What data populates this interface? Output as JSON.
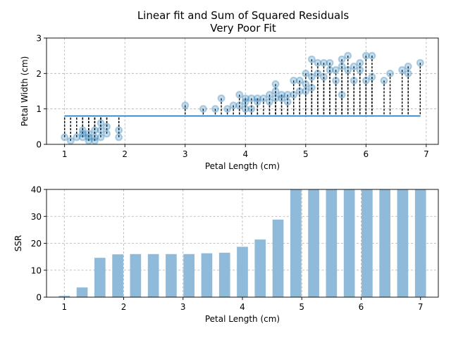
{
  "chart_data": [
    {
      "type": "scatter",
      "title": "Linear fit and Sum of Squared Residuals",
      "subtitle": "Very Poor Fit",
      "xlabel": "Petal Length (cm)",
      "ylabel": "Petal Width (cm)",
      "xlim": [
        0.7,
        7.2
      ],
      "ylim": [
        0,
        3
      ],
      "xticks": [
        "1",
        "2",
        "3",
        "4",
        "5",
        "6",
        "7"
      ],
      "yticks": [
        "0",
        "1",
        "2",
        "3"
      ],
      "grid": true,
      "fit_line": {
        "x": [
          1.0,
          6.9
        ],
        "y": [
          0.8,
          0.8
        ],
        "color": "#1f77b4"
      },
      "point_color": "#1f77b4",
      "residual_color": "#000000",
      "points": [
        [
          1.0,
          0.2
        ],
        [
          1.1,
          0.1
        ],
        [
          1.2,
          0.2
        ],
        [
          1.3,
          0.2
        ],
        [
          1.3,
          0.3
        ],
        [
          1.3,
          0.4
        ],
        [
          1.4,
          0.1
        ],
        [
          1.4,
          0.2
        ],
        [
          1.4,
          0.3
        ],
        [
          1.5,
          0.1
        ],
        [
          1.5,
          0.2
        ],
        [
          1.5,
          0.4
        ],
        [
          1.6,
          0.2
        ],
        [
          1.6,
          0.4
        ],
        [
          1.6,
          0.6
        ],
        [
          1.7,
          0.3
        ],
        [
          1.7,
          0.5
        ],
        [
          1.9,
          0.2
        ],
        [
          1.9,
          0.4
        ],
        [
          3.0,
          1.1
        ],
        [
          3.3,
          1.0
        ],
        [
          3.5,
          1.0
        ],
        [
          3.6,
          1.3
        ],
        [
          3.7,
          1.0
        ],
        [
          3.8,
          1.1
        ],
        [
          3.9,
          1.1
        ],
        [
          3.9,
          1.4
        ],
        [
          4.0,
          1.0
        ],
        [
          4.0,
          1.2
        ],
        [
          4.0,
          1.3
        ],
        [
          4.1,
          1.0
        ],
        [
          4.1,
          1.3
        ],
        [
          4.2,
          1.2
        ],
        [
          4.2,
          1.3
        ],
        [
          4.3,
          1.3
        ],
        [
          4.4,
          1.2
        ],
        [
          4.4,
          1.4
        ],
        [
          4.5,
          1.3
        ],
        [
          4.5,
          1.5
        ],
        [
          4.5,
          1.7
        ],
        [
          4.6,
          1.3
        ],
        [
          4.6,
          1.4
        ],
        [
          4.7,
          1.2
        ],
        [
          4.7,
          1.4
        ],
        [
          4.8,
          1.4
        ],
        [
          4.8,
          1.8
        ],
        [
          4.9,
          1.5
        ],
        [
          4.9,
          1.8
        ],
        [
          5.0,
          1.5
        ],
        [
          5.0,
          1.7
        ],
        [
          5.0,
          2.0
        ],
        [
          5.1,
          1.6
        ],
        [
          5.1,
          1.9
        ],
        [
          5.1,
          2.4
        ],
        [
          5.2,
          2.0
        ],
        [
          5.2,
          2.3
        ],
        [
          5.3,
          1.9
        ],
        [
          5.3,
          2.3
        ],
        [
          5.4,
          2.1
        ],
        [
          5.4,
          2.3
        ],
        [
          5.5,
          1.8
        ],
        [
          5.5,
          2.1
        ],
        [
          5.6,
          1.4
        ],
        [
          5.6,
          2.2
        ],
        [
          5.6,
          2.4
        ],
        [
          5.7,
          2.1
        ],
        [
          5.7,
          2.5
        ],
        [
          5.8,
          1.8
        ],
        [
          5.8,
          2.2
        ],
        [
          5.9,
          2.1
        ],
        [
          5.9,
          2.3
        ],
        [
          6.0,
          1.8
        ],
        [
          6.0,
          2.5
        ],
        [
          6.1,
          1.9
        ],
        [
          6.1,
          2.5
        ],
        [
          6.3,
          1.8
        ],
        [
          6.4,
          2.0
        ],
        [
          6.6,
          2.1
        ],
        [
          6.7,
          2.0
        ],
        [
          6.7,
          2.2
        ],
        [
          6.9,
          2.3
        ]
      ]
    },
    {
      "type": "bar",
      "title": "",
      "xlabel": "Petal Length (cm)",
      "ylabel": "SSR",
      "xlim": [
        0.7,
        7.3
      ],
      "ylim": [
        0,
        40
      ],
      "xticks": [
        "1",
        "2",
        "3",
        "4",
        "5",
        "6",
        "7"
      ],
      "yticks": [
        "0",
        "10",
        "20",
        "30",
        "40"
      ],
      "grid": true,
      "bar_color": "#8fbad9",
      "x": [
        1.0,
        1.3,
        1.6,
        1.9,
        2.2,
        2.5,
        2.8,
        3.1,
        3.4,
        3.7,
        4.0,
        4.3,
        4.6,
        4.9,
        5.2,
        5.5,
        5.8,
        6.1,
        6.4,
        6.7,
        7.0
      ],
      "values": [
        0.5,
        3.6,
        14.6,
        15.9,
        16.0,
        16.0,
        16.0,
        16.0,
        16.3,
        16.5,
        18.7,
        21.4,
        28.8,
        40,
        40,
        40,
        40,
        40,
        40,
        40,
        40
      ]
    }
  ]
}
